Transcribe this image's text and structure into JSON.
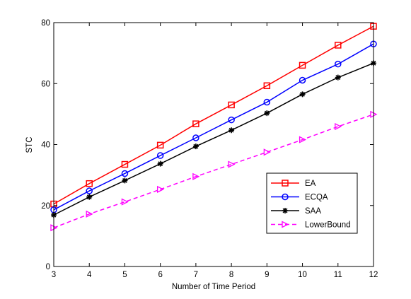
{
  "chart_data": {
    "type": "line",
    "title": "",
    "xlabel": "Number of Time Period",
    "ylabel": "STC",
    "x": [
      3,
      4,
      5,
      6,
      7,
      8,
      9,
      10,
      11,
      12
    ],
    "xlim": [
      3,
      12
    ],
    "ylim": [
      0,
      80
    ],
    "xticks": [
      "3",
      "4",
      "5",
      "6",
      "7",
      "8",
      "9",
      "10",
      "11",
      "12"
    ],
    "yticks": [
      "0",
      "20",
      "40",
      "60",
      "80"
    ],
    "grid": false,
    "legend_position": "bottom-right",
    "series": [
      {
        "name": "EA",
        "color": "#ff0000",
        "marker": "square",
        "dash": "solid",
        "values": [
          20.5,
          27.2,
          33.5,
          39.8,
          46.8,
          53.0,
          59.3,
          66.0,
          72.6,
          78.8
        ]
      },
      {
        "name": "ECQA",
        "color": "#0000ff",
        "marker": "circle",
        "dash": "solid",
        "values": [
          18.6,
          24.8,
          30.5,
          36.4,
          42.2,
          48.1,
          53.9,
          61.1,
          66.4,
          73.0
        ]
      },
      {
        "name": "SAA",
        "color": "#000000",
        "marker": "star",
        "dash": "solid",
        "values": [
          16.9,
          22.8,
          28.2,
          33.7,
          39.4,
          44.7,
          50.3,
          56.5,
          62.0,
          66.7
        ]
      },
      {
        "name": "LowerBound",
        "color": "#ff00ff",
        "marker": "triangle-right",
        "dash": "dashed",
        "values": [
          12.7,
          17.2,
          21.2,
          25.3,
          29.5,
          33.5,
          37.5,
          41.6,
          45.9,
          49.9
        ]
      }
    ]
  }
}
